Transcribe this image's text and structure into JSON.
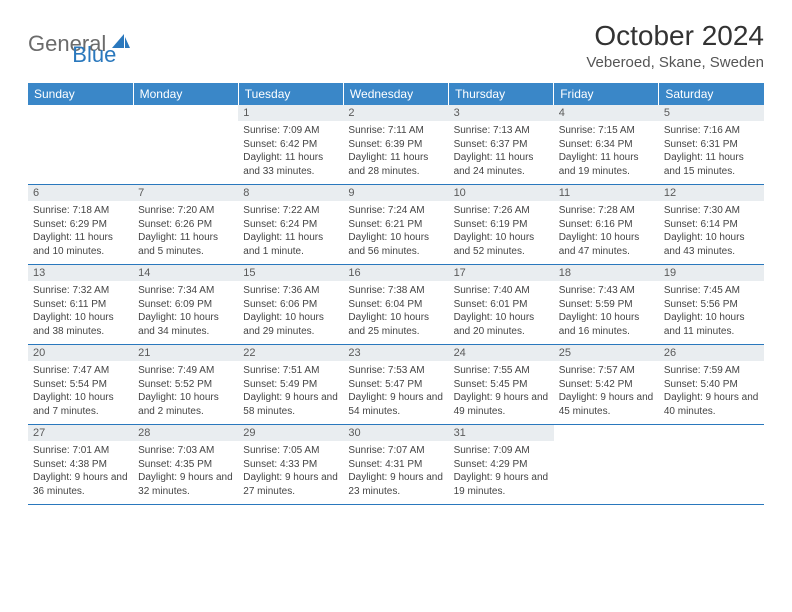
{
  "logo": {
    "general": "General",
    "blue": "Blue"
  },
  "title": "October 2024",
  "location": "Veberoed, Skane, Sweden",
  "weekdays": [
    "Sunday",
    "Monday",
    "Tuesday",
    "Wednesday",
    "Thursday",
    "Friday",
    "Saturday"
  ],
  "colors": {
    "header_bg": "#3a87c8",
    "accent": "#2a78bd",
    "daynum_bg": "#e9edf0",
    "text": "#333333"
  },
  "grid": [
    [
      {
        "n": "",
        "lines": []
      },
      {
        "n": "",
        "lines": []
      },
      {
        "n": "1",
        "lines": [
          "Sunrise: 7:09 AM",
          "Sunset: 6:42 PM",
          "Daylight: 11 hours and 33 minutes."
        ]
      },
      {
        "n": "2",
        "lines": [
          "Sunrise: 7:11 AM",
          "Sunset: 6:39 PM",
          "Daylight: 11 hours and 28 minutes."
        ]
      },
      {
        "n": "3",
        "lines": [
          "Sunrise: 7:13 AM",
          "Sunset: 6:37 PM",
          "Daylight: 11 hours and 24 minutes."
        ]
      },
      {
        "n": "4",
        "lines": [
          "Sunrise: 7:15 AM",
          "Sunset: 6:34 PM",
          "Daylight: 11 hours and 19 minutes."
        ]
      },
      {
        "n": "5",
        "lines": [
          "Sunrise: 7:16 AM",
          "Sunset: 6:31 PM",
          "Daylight: 11 hours and 15 minutes."
        ]
      }
    ],
    [
      {
        "n": "6",
        "lines": [
          "Sunrise: 7:18 AM",
          "Sunset: 6:29 PM",
          "Daylight: 11 hours and 10 minutes."
        ]
      },
      {
        "n": "7",
        "lines": [
          "Sunrise: 7:20 AM",
          "Sunset: 6:26 PM",
          "Daylight: 11 hours and 5 minutes."
        ]
      },
      {
        "n": "8",
        "lines": [
          "Sunrise: 7:22 AM",
          "Sunset: 6:24 PM",
          "Daylight: 11 hours and 1 minute."
        ]
      },
      {
        "n": "9",
        "lines": [
          "Sunrise: 7:24 AM",
          "Sunset: 6:21 PM",
          "Daylight: 10 hours and 56 minutes."
        ]
      },
      {
        "n": "10",
        "lines": [
          "Sunrise: 7:26 AM",
          "Sunset: 6:19 PM",
          "Daylight: 10 hours and 52 minutes."
        ]
      },
      {
        "n": "11",
        "lines": [
          "Sunrise: 7:28 AM",
          "Sunset: 6:16 PM",
          "Daylight: 10 hours and 47 minutes."
        ]
      },
      {
        "n": "12",
        "lines": [
          "Sunrise: 7:30 AM",
          "Sunset: 6:14 PM",
          "Daylight: 10 hours and 43 minutes."
        ]
      }
    ],
    [
      {
        "n": "13",
        "lines": [
          "Sunrise: 7:32 AM",
          "Sunset: 6:11 PM",
          "Daylight: 10 hours and 38 minutes."
        ]
      },
      {
        "n": "14",
        "lines": [
          "Sunrise: 7:34 AM",
          "Sunset: 6:09 PM",
          "Daylight: 10 hours and 34 minutes."
        ]
      },
      {
        "n": "15",
        "lines": [
          "Sunrise: 7:36 AM",
          "Sunset: 6:06 PM",
          "Daylight: 10 hours and 29 minutes."
        ]
      },
      {
        "n": "16",
        "lines": [
          "Sunrise: 7:38 AM",
          "Sunset: 6:04 PM",
          "Daylight: 10 hours and 25 minutes."
        ]
      },
      {
        "n": "17",
        "lines": [
          "Sunrise: 7:40 AM",
          "Sunset: 6:01 PM",
          "Daylight: 10 hours and 20 minutes."
        ]
      },
      {
        "n": "18",
        "lines": [
          "Sunrise: 7:43 AM",
          "Sunset: 5:59 PM",
          "Daylight: 10 hours and 16 minutes."
        ]
      },
      {
        "n": "19",
        "lines": [
          "Sunrise: 7:45 AM",
          "Sunset: 5:56 PM",
          "Daylight: 10 hours and 11 minutes."
        ]
      }
    ],
    [
      {
        "n": "20",
        "lines": [
          "Sunrise: 7:47 AM",
          "Sunset: 5:54 PM",
          "Daylight: 10 hours and 7 minutes."
        ]
      },
      {
        "n": "21",
        "lines": [
          "Sunrise: 7:49 AM",
          "Sunset: 5:52 PM",
          "Daylight: 10 hours and 2 minutes."
        ]
      },
      {
        "n": "22",
        "lines": [
          "Sunrise: 7:51 AM",
          "Sunset: 5:49 PM",
          "Daylight: 9 hours and 58 minutes."
        ]
      },
      {
        "n": "23",
        "lines": [
          "Sunrise: 7:53 AM",
          "Sunset: 5:47 PM",
          "Daylight: 9 hours and 54 minutes."
        ]
      },
      {
        "n": "24",
        "lines": [
          "Sunrise: 7:55 AM",
          "Sunset: 5:45 PM",
          "Daylight: 9 hours and 49 minutes."
        ]
      },
      {
        "n": "25",
        "lines": [
          "Sunrise: 7:57 AM",
          "Sunset: 5:42 PM",
          "Daylight: 9 hours and 45 minutes."
        ]
      },
      {
        "n": "26",
        "lines": [
          "Sunrise: 7:59 AM",
          "Sunset: 5:40 PM",
          "Daylight: 9 hours and 40 minutes."
        ]
      }
    ],
    [
      {
        "n": "27",
        "lines": [
          "Sunrise: 7:01 AM",
          "Sunset: 4:38 PM",
          "Daylight: 9 hours and 36 minutes."
        ]
      },
      {
        "n": "28",
        "lines": [
          "Sunrise: 7:03 AM",
          "Sunset: 4:35 PM",
          "Daylight: 9 hours and 32 minutes."
        ]
      },
      {
        "n": "29",
        "lines": [
          "Sunrise: 7:05 AM",
          "Sunset: 4:33 PM",
          "Daylight: 9 hours and 27 minutes."
        ]
      },
      {
        "n": "30",
        "lines": [
          "Sunrise: 7:07 AM",
          "Sunset: 4:31 PM",
          "Daylight: 9 hours and 23 minutes."
        ]
      },
      {
        "n": "31",
        "lines": [
          "Sunrise: 7:09 AM",
          "Sunset: 4:29 PM",
          "Daylight: 9 hours and 19 minutes."
        ]
      },
      {
        "n": "",
        "lines": []
      },
      {
        "n": "",
        "lines": []
      }
    ]
  ]
}
